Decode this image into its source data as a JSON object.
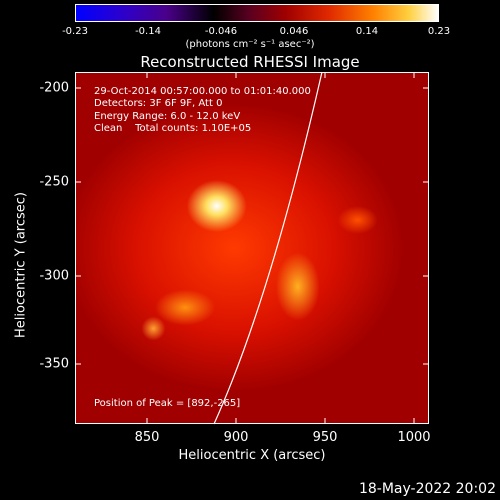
{
  "colorbar": {
    "ticks": [
      "-0.23",
      "-0.14",
      "-0.046",
      "0.046",
      "0.14",
      "0.23"
    ],
    "unit": "(photons cm⁻² s⁻¹ asec⁻²)"
  },
  "title": "Reconstructed RHESSI Image",
  "info": {
    "time": "29-Oct-2014 00:57:00.000 to 01:01:40.000",
    "detectors": "Detectors: 3F 6F 9F, Att 0",
    "energy": "Energy Range: 6.0 - 12.0 keV",
    "clean": "Clean    Total counts: 1.10E+05",
    "peak": "Position of Peak = [892,-265]"
  },
  "axes": {
    "xlabel": "Heliocentric X (arcsec)",
    "ylabel": "Heliocentric Y (arcsec)",
    "xticks": [
      "850",
      "900",
      "950",
      "1000"
    ],
    "yticks": [
      "-200",
      "-250",
      "-300",
      "-350"
    ]
  },
  "timestamp": "18-May-2022 20:02",
  "colors": {
    "limb": "#ffffff",
    "background": "#000000"
  }
}
